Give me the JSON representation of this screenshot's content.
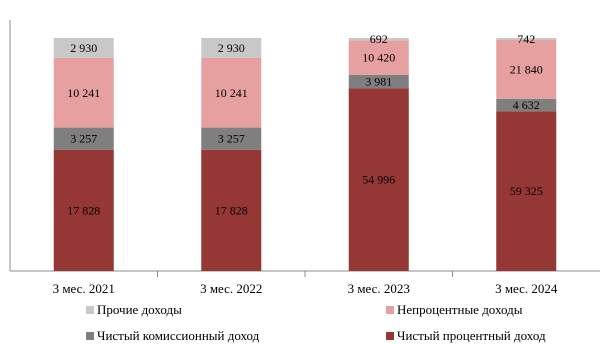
{
  "chart_data": {
    "type": "bar",
    "stacked": true,
    "categories": [
      "3 мес. 2021",
      "3 мес. 2022",
      "3 мес. 2023",
      "3 мес. 2024"
    ],
    "value_labels": {
      "Чистый процентный доход": [
        "17 828",
        "17 828",
        "54 996",
        "59 325"
      ],
      "Чистый комиссионный доход": [
        "3 257",
        "3 257",
        "3 981",
        "4 632"
      ],
      "Непроцентные доходы": [
        "10 241",
        "10 241",
        "10 420",
        "21 840"
      ],
      "Прочие доходы": [
        "2 930",
        "2 930",
        "692",
        "742"
      ]
    },
    "series": [
      {
        "name": "Чистый процентный доход",
        "values": [
          17828,
          17828,
          54996,
          59325
        ],
        "color": "#953735"
      },
      {
        "name": "Чистый комиссионный доход",
        "values": [
          3257,
          3257,
          3981,
          4632
        ],
        "color": "#7f7f7f"
      },
      {
        "name": "Непроцентные доходы",
        "values": [
          10241,
          10241,
          10420,
          21840
        ],
        "color": "#e6a0a0"
      },
      {
        "name": "Прочие доходы",
        "values": [
          2930,
          2930,
          692,
          742
        ],
        "color": "#c8c8c8"
      }
    ],
    "legend": {
      "placement": "bottom",
      "items": [
        "Прочие доходы",
        "Непроцентные доходы",
        "Чистый комиссионный доход",
        "Чистый процентный доход"
      ]
    },
    "grid": false
  }
}
